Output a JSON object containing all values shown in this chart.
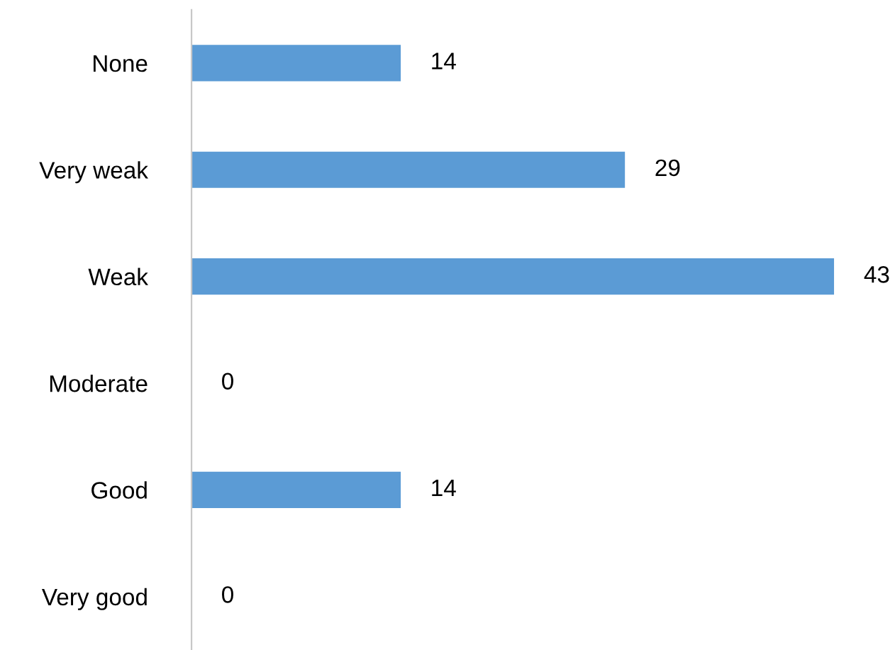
{
  "chart_data": {
    "type": "bar",
    "orientation": "horizontal",
    "categories": [
      "None",
      "Very weak",
      "Weak",
      "Moderate",
      "Good",
      "Very good"
    ],
    "values": [
      14,
      29,
      43,
      0,
      14,
      0
    ],
    "color": "#5b9bd5",
    "data_labels": true,
    "grid": false,
    "legend": false
  }
}
